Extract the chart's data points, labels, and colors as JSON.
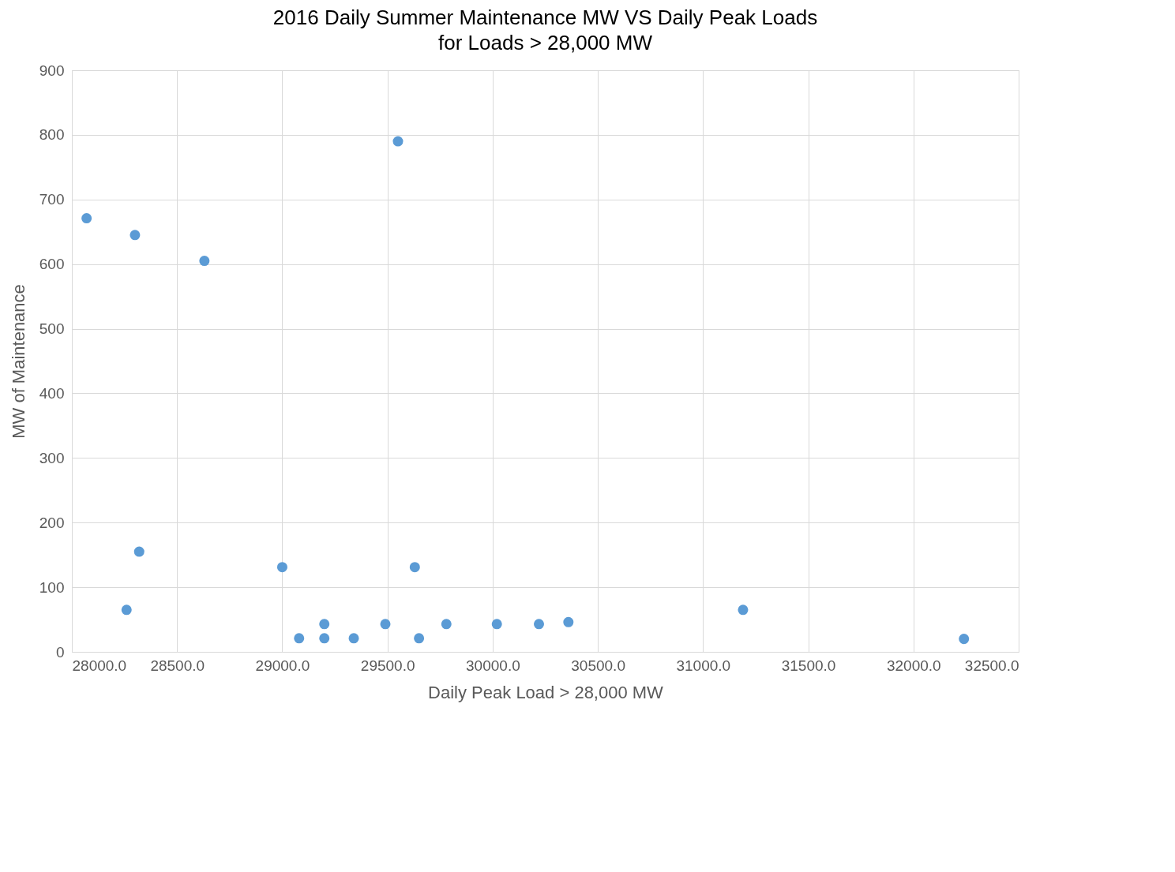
{
  "chart_data": {
    "type": "scatter",
    "title": "2016 Daily Summer Maintenance MW VS Daily Peak Loads",
    "subtitle": "for Loads > 28,000 MW",
    "xlabel": "Daily Peak Load > 28,000 MW",
    "ylabel": "MW of Maintenance",
    "x": [
      28070,
      28300,
      28630,
      28320,
      28260,
      29000,
      29080,
      29200,
      29200,
      29340,
      29490,
      29550,
      29630,
      29650,
      29780,
      30020,
      30220,
      30360,
      31190,
      32240
    ],
    "series": [
      {
        "color": "#5b9bd5",
        "values": [
          671,
          645,
          605,
          155,
          65,
          131,
          21,
          43,
          21,
          21,
          43,
          790,
          131,
          21,
          43,
          43,
          43,
          46,
          65,
          20
        ]
      }
    ],
    "xlim": [
      28000,
      32500
    ],
    "xticks": [
      {
        "value": 28000,
        "label": "28000.0"
      },
      {
        "value": 28500,
        "label": "28500.0"
      },
      {
        "value": 29000,
        "label": "29000.0"
      },
      {
        "value": 29500,
        "label": "29500.0"
      },
      {
        "value": 30000,
        "label": "30000.0"
      },
      {
        "value": 30500,
        "label": "30500.0"
      },
      {
        "value": 31000,
        "label": "31000.0"
      },
      {
        "value": 31500,
        "label": "31500.0"
      },
      {
        "value": 32000,
        "label": "32000.0"
      },
      {
        "value": 32500,
        "label": "32500.0"
      }
    ],
    "ylim": [
      0,
      900
    ],
    "yticks": [
      0,
      100,
      200,
      300,
      400,
      500,
      600,
      700,
      800,
      900
    ],
    "grid": true,
    "marker": "circle"
  }
}
